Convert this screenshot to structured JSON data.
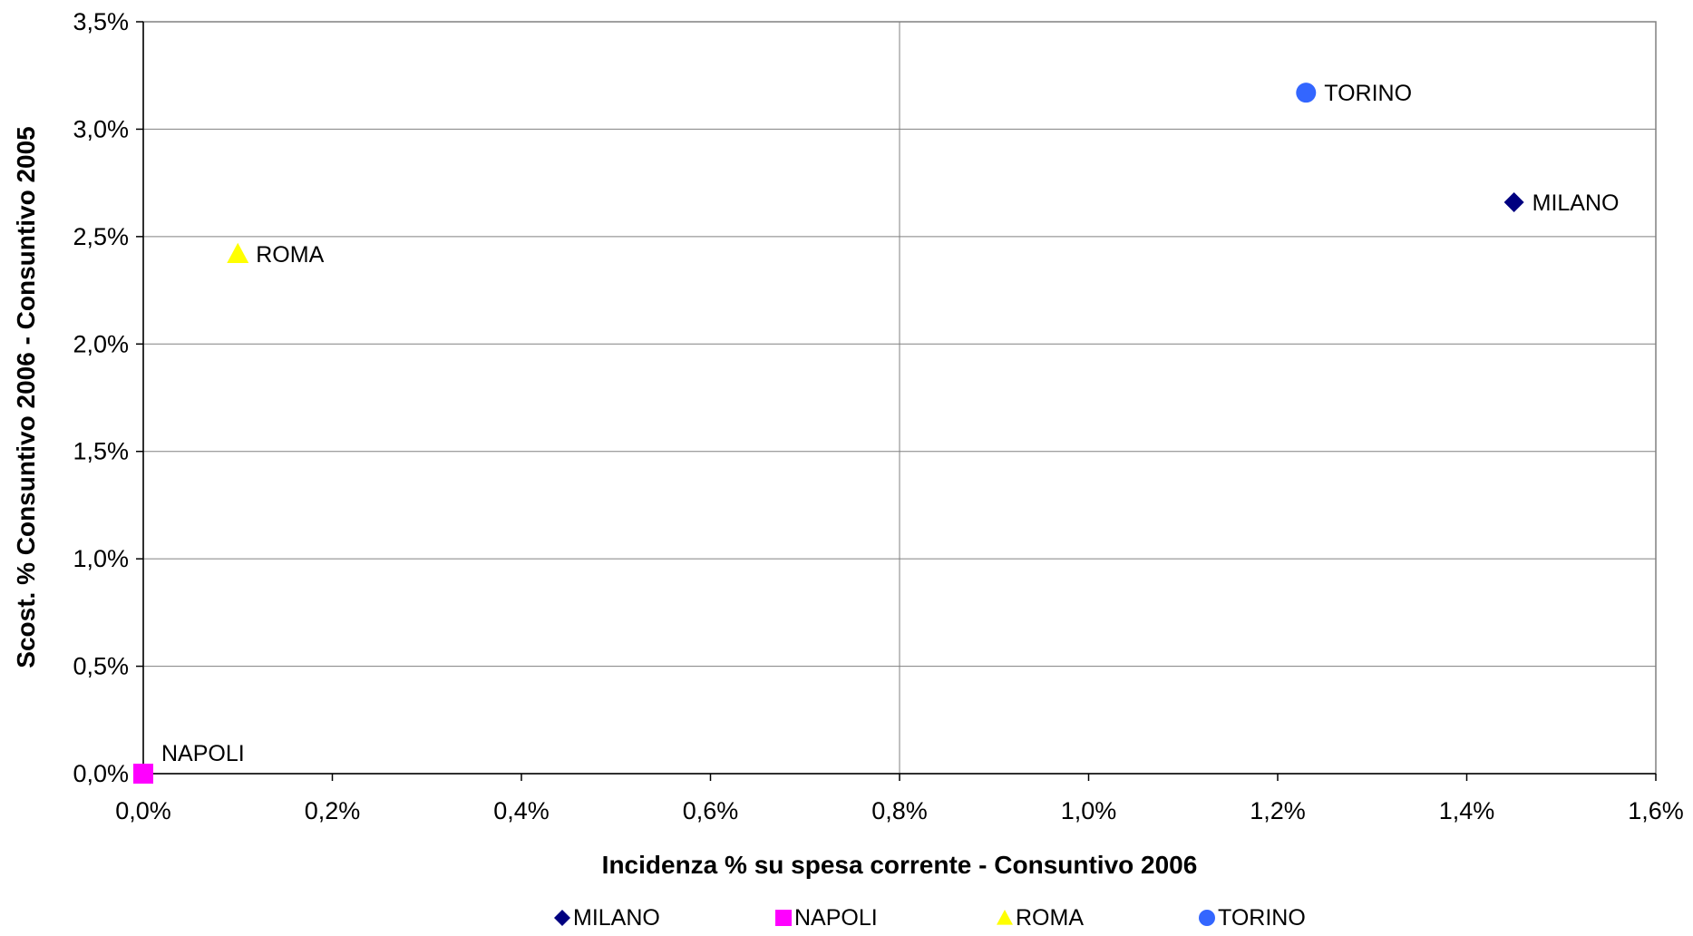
{
  "chart_data": {
    "type": "scatter",
    "xlabel": "Incidenza % su spesa corrente - Consuntivo 2006",
    "ylabel": "Scost. % Consuntivo 2006 - Consuntivo 2005",
    "xlim": [
      0,
      1.6
    ],
    "ylim": [
      0,
      3.5
    ],
    "x_ticks": [
      "0,0%",
      "0,2%",
      "0,4%",
      "0,6%",
      "0,8%",
      "1,0%",
      "1,2%",
      "1,4%",
      "1,6%"
    ],
    "y_ticks": [
      "0,0%",
      "0,5%",
      "1,0%",
      "1,5%",
      "2,0%",
      "2,5%",
      "3,0%",
      "3,5%"
    ],
    "grid": "horizontal gridlines + vertical line at 0.8%",
    "legend_position": "bottom",
    "series": [
      {
        "name": "MILANO",
        "label": "MILANO",
        "x": 1.45,
        "y": 2.66,
        "marker": "diamond",
        "color": "#000080"
      },
      {
        "name": "NAPOLI",
        "label": "NAPOLI",
        "x": 0.0,
        "y": 0.0,
        "marker": "square",
        "color": "#FF00FF"
      },
      {
        "name": "ROMA",
        "label": "ROMA",
        "x": 0.1,
        "y": 2.42,
        "marker": "triangle",
        "color": "#FFFF00"
      },
      {
        "name": "TORINO",
        "label": "TORINO",
        "x": 1.23,
        "y": 3.17,
        "marker": "circle",
        "color": "#3366FF"
      }
    ]
  }
}
